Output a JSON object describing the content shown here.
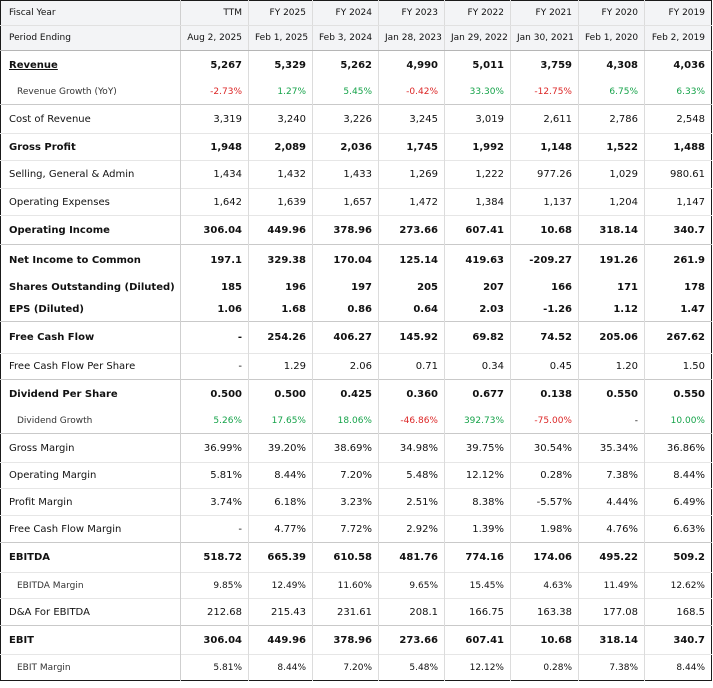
{
  "header": {
    "fiscal_year_label": "Fiscal Year",
    "period_ending_label": "Period Ending",
    "columns": [
      "TTM",
      "FY 2025",
      "FY 2024",
      "FY 2023",
      "FY 2022",
      "FY 2021",
      "FY 2020",
      "FY 2019"
    ],
    "period_ending": [
      "Aug 2, 2025",
      "Feb 1, 2025",
      "Feb 3, 2024",
      "Jan 28, 2023",
      "Jan 29, 2022",
      "Jan 30, 2021",
      "Feb 1, 2020",
      "Feb 2, 2019"
    ]
  },
  "rows": [
    {
      "label": "Revenue",
      "values": [
        "5,267",
        "5,329",
        "5,262",
        "4,990",
        "5,011",
        "3,759",
        "4,308",
        "4,036"
      ]
    },
    {
      "label": "Revenue Growth (YoY)",
      "values": [
        "-2.73%",
        "1.27%",
        "5.45%",
        "-0.42%",
        "33.30%",
        "-12.75%",
        "6.75%",
        "6.33%"
      ]
    },
    {
      "label": "Cost of Revenue",
      "values": [
        "3,319",
        "3,240",
        "3,226",
        "3,245",
        "3,019",
        "2,611",
        "2,786",
        "2,548"
      ]
    },
    {
      "label": "Gross Profit",
      "values": [
        "1,948",
        "2,089",
        "2,036",
        "1,745",
        "1,992",
        "1,148",
        "1,522",
        "1,488"
      ]
    },
    {
      "label": "Selling, General & Admin",
      "values": [
        "1,434",
        "1,432",
        "1,433",
        "1,269",
        "1,222",
        "977.26",
        "1,029",
        "980.61"
      ]
    },
    {
      "label": "Operating Expenses",
      "values": [
        "1,642",
        "1,639",
        "1,657",
        "1,472",
        "1,384",
        "1,137",
        "1,204",
        "1,147"
      ]
    },
    {
      "label": "Operating Income",
      "values": [
        "306.04",
        "449.96",
        "378.96",
        "273.66",
        "607.41",
        "10.68",
        "318.14",
        "340.7"
      ]
    },
    {
      "label": "Net Income to Common",
      "values": [
        "197.1",
        "329.38",
        "170.04",
        "125.14",
        "419.63",
        "-209.27",
        "191.26",
        "261.9"
      ]
    },
    {
      "label": "Shares Outstanding (Diluted)",
      "values": [
        "185",
        "196",
        "197",
        "205",
        "207",
        "166",
        "171",
        "178"
      ]
    },
    {
      "label": "EPS (Diluted)",
      "values": [
        "1.06",
        "1.68",
        "0.86",
        "0.64",
        "2.03",
        "-1.26",
        "1.12",
        "1.47"
      ]
    },
    {
      "label": "Free Cash Flow",
      "values": [
        "-",
        "254.26",
        "406.27",
        "145.92",
        "69.82",
        "74.52",
        "205.06",
        "267.62"
      ]
    },
    {
      "label": "Free Cash Flow Per Share",
      "values": [
        "-",
        "1.29",
        "2.06",
        "0.71",
        "0.34",
        "0.45",
        "1.20",
        "1.50"
      ]
    },
    {
      "label": "Dividend Per Share",
      "values": [
        "0.500",
        "0.500",
        "0.425",
        "0.360",
        "0.677",
        "0.138",
        "0.550",
        "0.550"
      ]
    },
    {
      "label": "Dividend Growth",
      "values": [
        "5.26%",
        "17.65%",
        "18.06%",
        "-46.86%",
        "392.73%",
        "-75.00%",
        "-",
        "10.00%"
      ]
    },
    {
      "label": "Gross Margin",
      "values": [
        "36.99%",
        "39.20%",
        "38.69%",
        "34.98%",
        "39.75%",
        "30.54%",
        "35.34%",
        "36.86%"
      ]
    },
    {
      "label": "Operating Margin",
      "values": [
        "5.81%",
        "8.44%",
        "7.20%",
        "5.48%",
        "12.12%",
        "0.28%",
        "7.38%",
        "8.44%"
      ]
    },
    {
      "label": "Profit Margin",
      "values": [
        "3.74%",
        "6.18%",
        "3.23%",
        "2.51%",
        "8.38%",
        "-5.57%",
        "4.44%",
        "6.49%"
      ]
    },
    {
      "label": "Free Cash Flow Margin",
      "values": [
        "-",
        "4.77%",
        "7.72%",
        "2.92%",
        "1.39%",
        "1.98%",
        "4.76%",
        "6.63%"
      ]
    },
    {
      "label": "EBITDA",
      "values": [
        "518.72",
        "665.39",
        "610.58",
        "481.76",
        "774.16",
        "174.06",
        "495.22",
        "509.2"
      ]
    },
    {
      "label": "EBITDA Margin",
      "values": [
        "9.85%",
        "12.49%",
        "11.60%",
        "9.65%",
        "15.45%",
        "4.63%",
        "11.49%",
        "12.62%"
      ]
    },
    {
      "label": "D&A For EBITDA",
      "values": [
        "212.68",
        "215.43",
        "231.61",
        "208.1",
        "166.75",
        "163.38",
        "177.08",
        "168.5"
      ]
    },
    {
      "label": "EBIT",
      "values": [
        "306.04",
        "449.96",
        "378.96",
        "273.66",
        "607.41",
        "10.68",
        "318.14",
        "340.7"
      ]
    },
    {
      "label": "EBIT Margin",
      "values": [
        "5.81%",
        "8.44%",
        "7.20%",
        "5.48%",
        "12.12%",
        "0.28%",
        "7.38%",
        "8.44%"
      ]
    }
  ],
  "colors": {
    "negative": "#dc2626",
    "positive": "#16a34a",
    "header_bg": "#f3f4f6",
    "border": "#1a1a1a"
  }
}
